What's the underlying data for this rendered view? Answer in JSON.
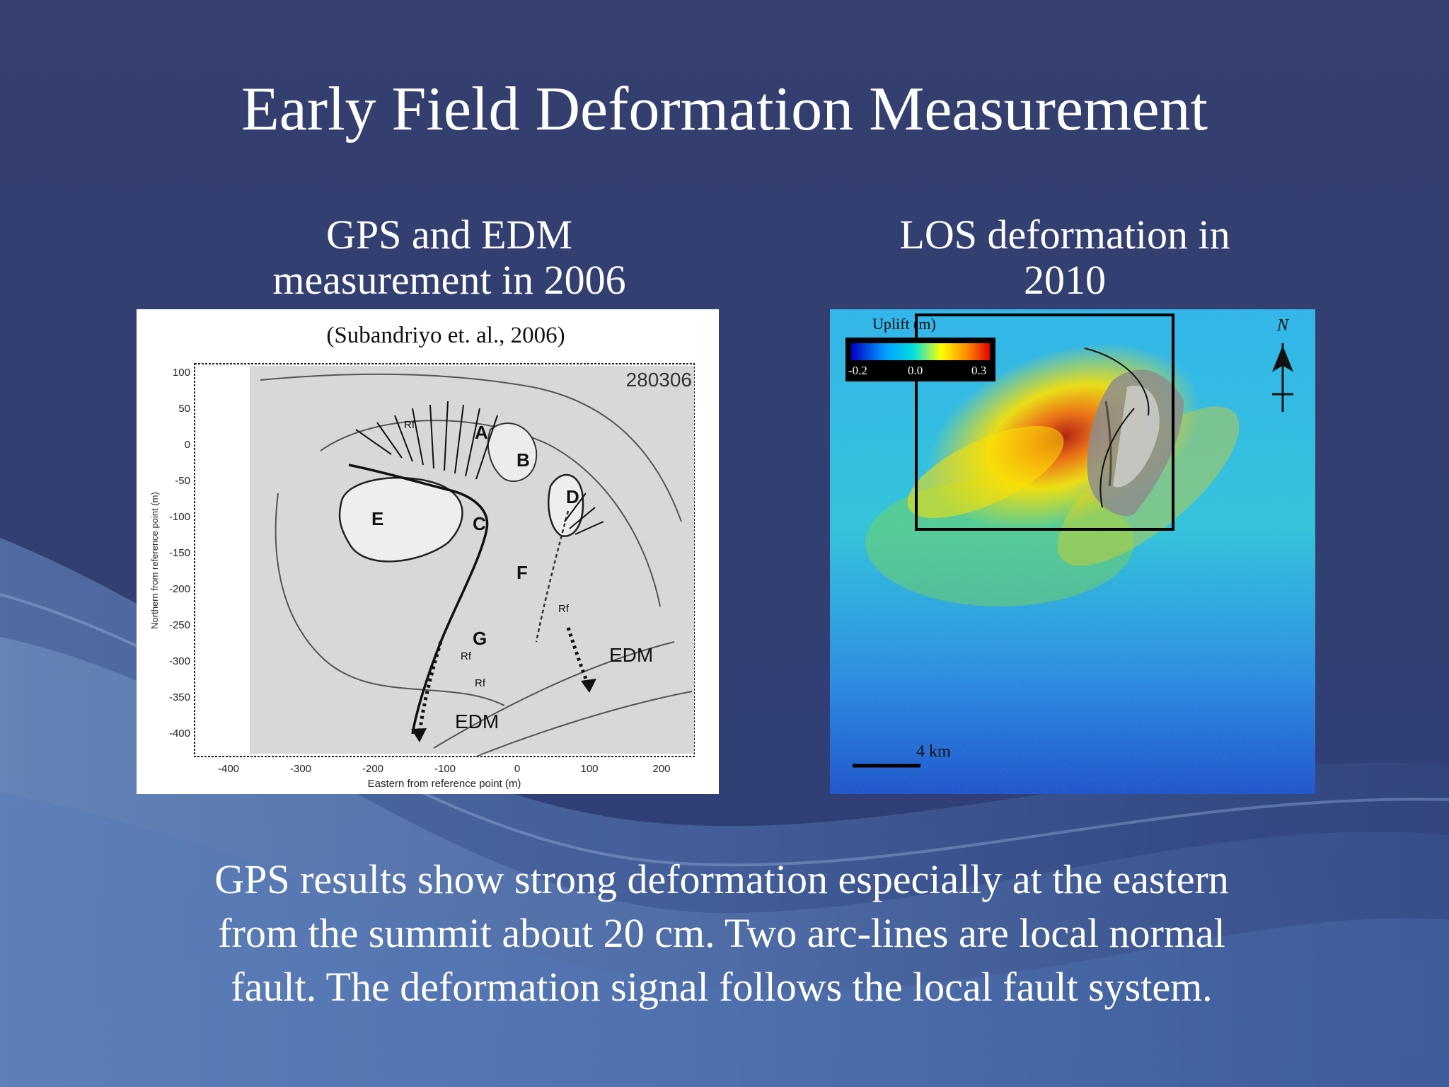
{
  "slide": {
    "title": "Early Field Deformation Measurement",
    "left_caption": [
      "GPS and EDM",
      "measurement in 2006"
    ],
    "right_caption": [
      "LOS deformation in",
      "2010"
    ],
    "body": [
      "GPS results show strong deformation especially at the eastern",
      "from the summit about 20 cm. Two arc-lines are local normal",
      "fault. The deformation signal follows the local fault system."
    ]
  },
  "gps_map": {
    "citation": "(Subandriyo et. al., 2006)",
    "date_code": "280306",
    "xlabel": "Eastern from reference point (m)",
    "ylabel": "Northern from reference point (m)",
    "x_ticks": [
      "-400",
      "-300",
      "-200",
      "-100",
      "0",
      "100",
      "200"
    ],
    "y_ticks": [
      "100",
      "50",
      "0",
      "-50",
      "-100",
      "-150",
      "-200",
      "-250",
      "-300",
      "-350",
      "-400"
    ],
    "zone_labels": [
      "A",
      "B",
      "C",
      "D",
      "E",
      "F",
      "G"
    ],
    "rf_label": "Rf",
    "edm_label": "EDM"
  },
  "los_map": {
    "colorbar_title": "Uplift (m)",
    "colorbar_ticks": [
      "-0.2",
      "0.0",
      "0.3"
    ],
    "north_label": "N",
    "scale_label": "4 km"
  },
  "colors": {
    "background": "#34406e",
    "text": "#ffffff",
    "colorbar": [
      "#0000c8",
      "#00a0ff",
      "#00e0e0",
      "#ffff00",
      "#ff8000",
      "#e00000"
    ]
  }
}
